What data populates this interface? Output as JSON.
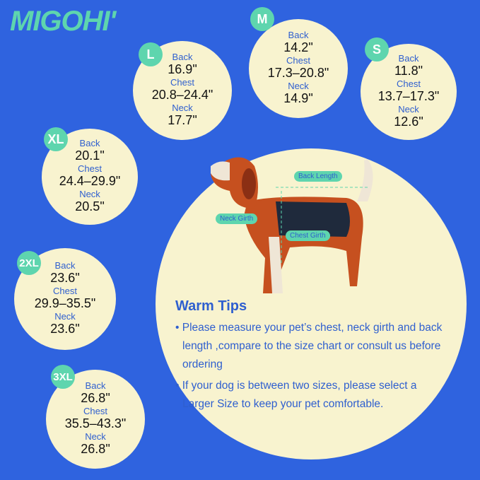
{
  "brand": "MIGOHI'",
  "sizes": [
    {
      "size": "M",
      "back_label": "Back",
      "back": "14.2\"",
      "chest_label": "Chest",
      "chest": "17.3–20.8\"",
      "neck_label": "Neck",
      "neck": "14.9\""
    },
    {
      "size": "L",
      "back_label": "Back",
      "back": "16.9\"",
      "chest_label": "Chest",
      "chest": "20.8–24.4\"",
      "neck_label": "Neck",
      "neck": "17.7\""
    },
    {
      "size": "S",
      "back_label": "Back",
      "back": "11.8\"",
      "chest_label": "Chest",
      "chest": "13.7–17.3\"",
      "neck_label": "Neck",
      "neck": "12.6\""
    },
    {
      "size": "XL",
      "back_label": "Back",
      "back": "20.1\"",
      "chest_label": "Chest",
      "chest": "24.4–29.9\"",
      "neck_label": "Neck",
      "neck": "20.5\""
    },
    {
      "size": "2XL",
      "back_label": "Back",
      "back": "23.6\"",
      "chest_label": "Chest",
      "chest": "29.9–35.5\"",
      "neck_label": "Neck",
      "neck": "23.6\""
    },
    {
      "size": "3XL",
      "back_label": "Back",
      "back": "26.8\"",
      "chest_label": "Chest",
      "chest": "35.5–43.3\"",
      "neck_label": "Neck",
      "neck": "26.8\""
    }
  ],
  "diagram": {
    "back_length": "Back Length",
    "neck_girth": "Neck Girth",
    "chest_girth": "Chest Girth"
  },
  "tips": {
    "title": "Warm Tips",
    "items": [
      "• Please measure your pet’s chest, neck girth and back length ,compare to the size chart or consult us before ordering",
      "• If your dog is between two sizes, please select a Larger Size to keep your pet comfortable."
    ]
  },
  "colors": {
    "background": "#2f63df",
    "circle": "#f8f3cf",
    "badge": "#5ed5ae"
  }
}
